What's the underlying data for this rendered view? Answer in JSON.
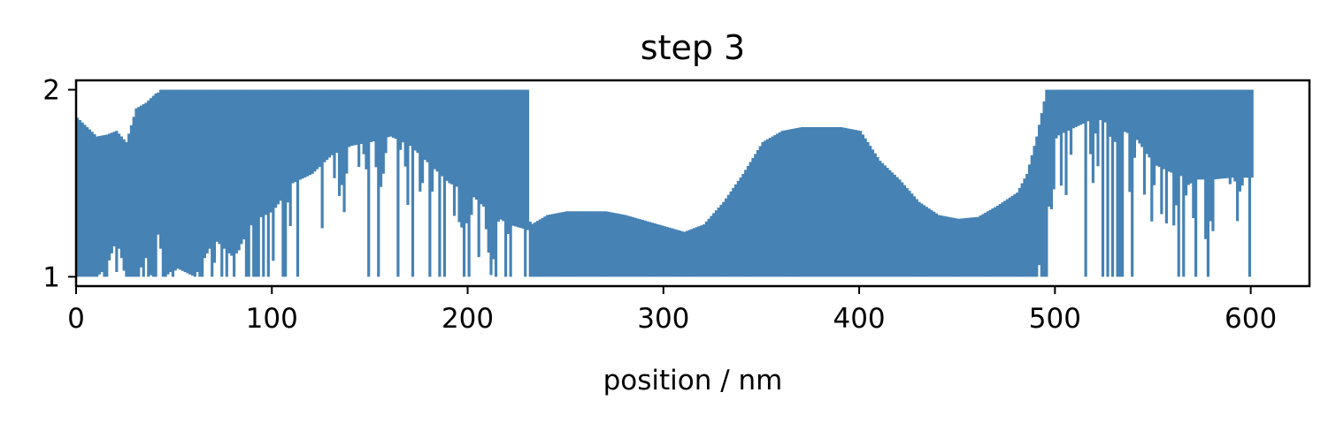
{
  "chart_data": {
    "type": "bar",
    "title": "step 3",
    "xlabel": "position / nm",
    "ylabel": "",
    "xlim": [
      0,
      630
    ],
    "ylim": [
      0.95,
      2.05
    ],
    "xticks": [
      0,
      100,
      200,
      300,
      400,
      500,
      600
    ],
    "yticks": [
      1,
      2
    ],
    "bar_color": "#4682b4",
    "grid": false,
    "legend": "none",
    "envelope": {
      "x": [
        0,
        5,
        10,
        15,
        20,
        25,
        30,
        35,
        40,
        45,
        50,
        60,
        70,
        80,
        90,
        100,
        110,
        120,
        130,
        140,
        150,
        160,
        170,
        180,
        190,
        200,
        210,
        220,
        230,
        231,
        232,
        240,
        250,
        260,
        270,
        280,
        290,
        300,
        310,
        320,
        330,
        340,
        350,
        360,
        370,
        380,
        390,
        400,
        410,
        420,
        430,
        440,
        450,
        460,
        470,
        480,
        485,
        490,
        495,
        500,
        510,
        520,
        530,
        540,
        550,
        560,
        570,
        580,
        590,
        600
      ],
      "upper": [
        1.85,
        1.8,
        1.75,
        1.76,
        1.78,
        1.72,
        1.9,
        1.93,
        1.98,
        2.0,
        2.0,
        2.0,
        2.0,
        2.0,
        2.0,
        2.0,
        2.0,
        2.0,
        2.0,
        2.0,
        2.0,
        2.0,
        2.0,
        2.0,
        2.0,
        2.0,
        2.0,
        2.0,
        2.0,
        1.3,
        1.28,
        1.33,
        1.35,
        1.35,
        1.35,
        1.33,
        1.3,
        1.27,
        1.24,
        1.28,
        1.4,
        1.55,
        1.72,
        1.78,
        1.8,
        1.8,
        1.8,
        1.78,
        1.62,
        1.52,
        1.4,
        1.33,
        1.31,
        1.32,
        1.38,
        1.45,
        1.55,
        1.75,
        2.0,
        2.0,
        2.0,
        2.0,
        2.0,
        2.0,
        2.0,
        2.0,
        2.0,
        2.0,
        2.0,
        2.0
      ],
      "lower": [
        1.0,
        1.0,
        1.0,
        1.05,
        1.2,
        1.0,
        1.0,
        1.1,
        1.3,
        1.0,
        1.05,
        1.0,
        1.2,
        1.1,
        1.3,
        1.35,
        1.5,
        1.55,
        1.65,
        1.7,
        1.72,
        1.75,
        1.7,
        1.6,
        1.5,
        1.45,
        1.35,
        1.28,
        1.25,
        1.0,
        1.0,
        1.0,
        1.0,
        1.0,
        1.0,
        1.0,
        1.0,
        1.0,
        1.0,
        1.0,
        1.0,
        1.0,
        1.0,
        1.0,
        1.0,
        1.0,
        1.0,
        1.0,
        1.0,
        1.0,
        1.0,
        1.0,
        1.0,
        1.0,
        1.0,
        1.0,
        1.0,
        1.0,
        1.25,
        1.75,
        1.8,
        1.85,
        1.8,
        1.75,
        1.6,
        1.55,
        1.52,
        1.52,
        1.53,
        1.53
      ]
    }
  }
}
